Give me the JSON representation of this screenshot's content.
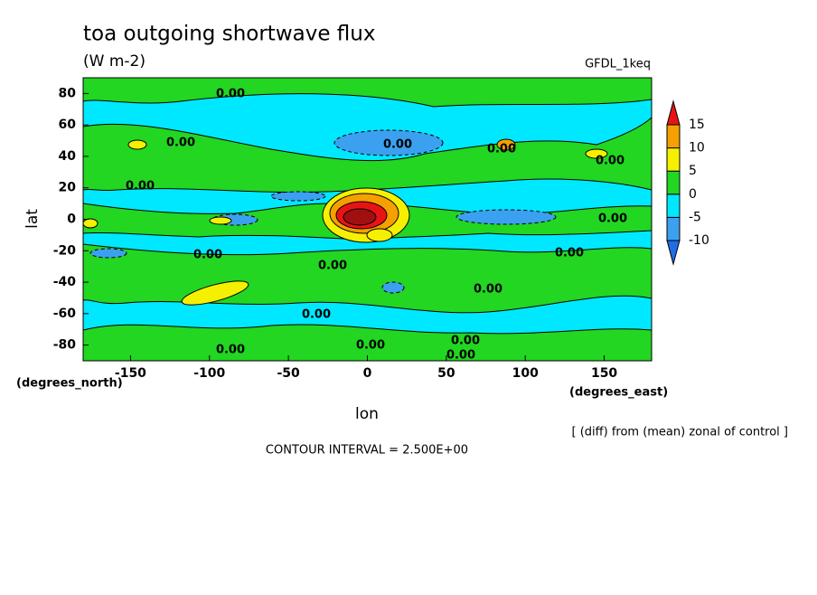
{
  "chart_data": {
    "type": "contour",
    "title": "toa outgoing shortwave flux",
    "subtitle": "(W m-2)",
    "model_label": "GFDL_1keq",
    "x_label": "lon",
    "y_label": "lat",
    "x_units": "(degrees_east)",
    "y_units": "(degrees_north)",
    "note": "[ (diff) from (mean) zonal of control ]",
    "contour_interval": "CONTOUR INTERVAL = 2.500E+00",
    "xlim": [
      -180,
      180
    ],
    "xticks": [
      -150,
      -100,
      -50,
      0,
      50,
      100,
      150
    ],
    "ylim": [
      -90,
      90
    ],
    "yticks": [
      -80,
      -60,
      -40,
      -20,
      0,
      20,
      40,
      60,
      80
    ],
    "colorbar": {
      "levels": [
        -10,
        -5,
        0,
        5,
        10,
        15
      ],
      "colors": [
        "#1e6ee6",
        "#3ca0f0",
        "#00e8ff",
        "#22d622",
        "#f5f000",
        "#f5a000",
        "#e81414"
      ]
    },
    "contour_labels": [
      "0.00",
      "0.00",
      "0.00",
      "0.00",
      "0.00",
      "0.00",
      "0.00",
      "0.00",
      "0.00",
      "0.00",
      "0.00",
      "0.00",
      "0.00",
      "0.00",
      "0.00",
      "0.00"
    ]
  }
}
